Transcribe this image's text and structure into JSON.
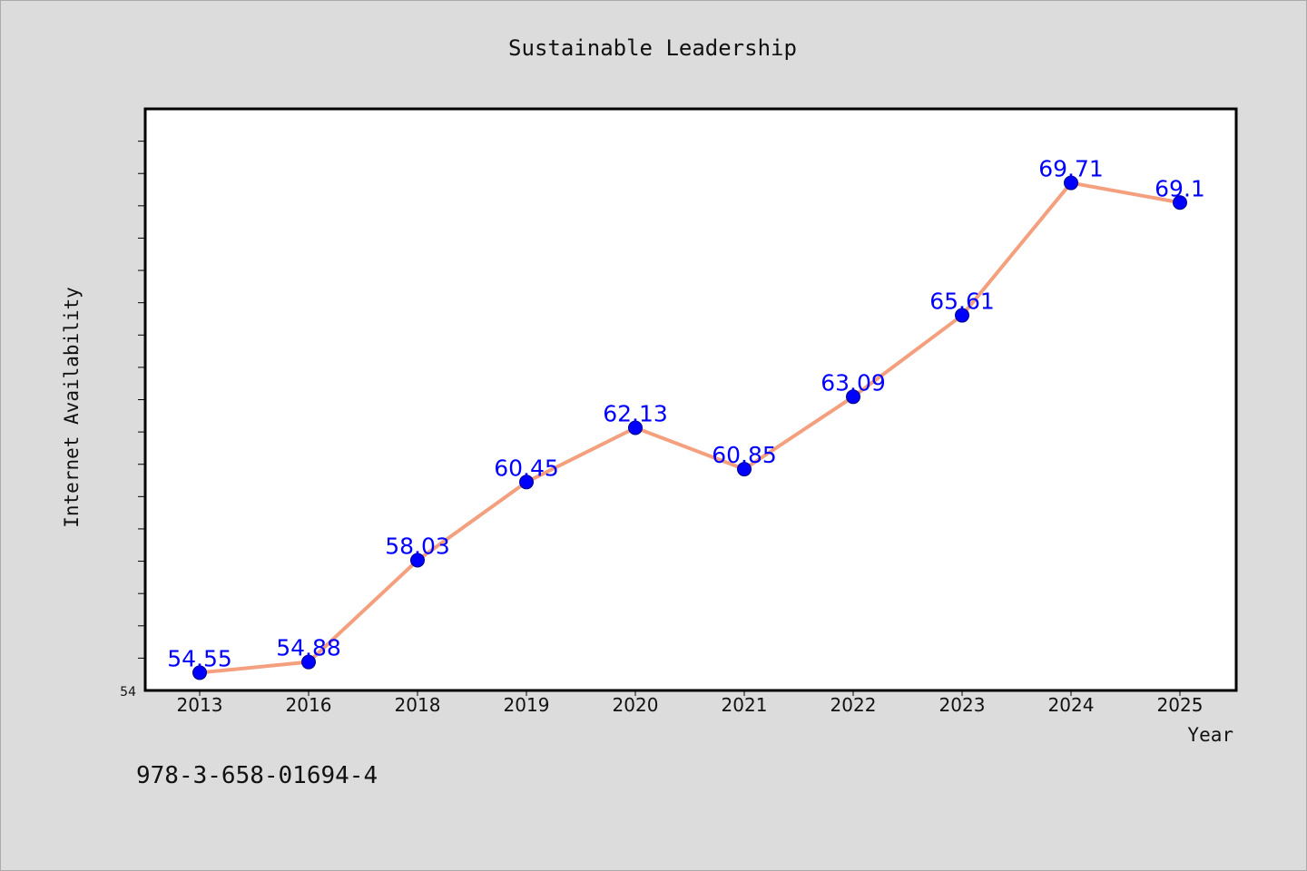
{
  "chart_data": {
    "type": "line",
    "title": "Sustainable Leadership",
    "xlabel": "Year",
    "ylabel": "Internet Availability",
    "categories": [
      "2013",
      "2016",
      "2018",
      "2019",
      "2020",
      "2021",
      "2022",
      "2023",
      "2024",
      "2025"
    ],
    "series": [
      {
        "values": [
          54.55,
          54.88,
          58.03,
          60.45,
          62.13,
          60.85,
          63.09,
          65.61,
          69.71,
          69.1
        ],
        "data_labels": [
          "54.55",
          "54.88",
          "58.03",
          "60.45",
          "62.13",
          "60.85",
          "63.09",
          "65.61",
          "69.71",
          "69.1"
        ]
      }
    ],
    "ylim": [
      54,
      72
    ],
    "y_tick_labels": [
      "54"
    ],
    "grid": false,
    "legend": "none",
    "colors": {
      "line": "#f4a07f",
      "marker": "#0000ff",
      "marker_edge": "#000080",
      "data_label": "#0000ff",
      "plot_background": "#ffffff",
      "figure_background": "#dcdcdc"
    }
  },
  "footnote": "978-3-658-01694-4"
}
